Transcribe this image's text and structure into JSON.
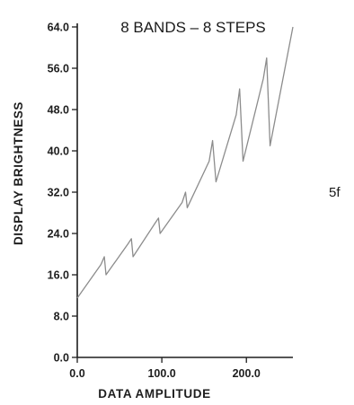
{
  "panel_label": "5f",
  "chart_data": {
    "type": "line",
    "title": "8 BANDS – 8 STEPS",
    "xlabel": "DATA AMPLITUDE",
    "ylabel": "DISPLAY BRIGHTNESS",
    "xlim": [
      0,
      255
    ],
    "ylim": [
      0,
      64
    ],
    "x_ticks": [
      0,
      100,
      200
    ],
    "x_tick_labels": [
      "0.0",
      "100.0",
      "200.0"
    ],
    "y_ticks": [
      0,
      8,
      16,
      24,
      32,
      40,
      48,
      56,
      64
    ],
    "y_tick_labels": [
      "0.0",
      "8.0",
      "16.0",
      "24.0",
      "32.0",
      "40.0",
      "48.0",
      "56.0",
      "64.0"
    ],
    "grid": false,
    "series": [
      {
        "color": "#8c8c8c",
        "x": [
          0,
          28,
          32,
          34,
          60,
          64,
          66,
          92,
          96,
          98,
          124,
          128,
          130,
          156,
          160,
          164,
          188,
          192,
          196,
          220,
          224,
          228,
          255
        ],
        "y": [
          11.5,
          18,
          19.5,
          16,
          22,
          23,
          19.5,
          26,
          27,
          24,
          30,
          32,
          29,
          38,
          42,
          34,
          47,
          52,
          38,
          54,
          58,
          41,
          64
        ]
      }
    ]
  }
}
